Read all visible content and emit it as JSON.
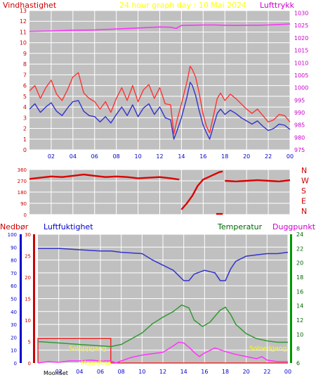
{
  "colors": {
    "background": "#ffffff",
    "plot_bg": "#c0c0c0",
    "grid": "#ffffff",
    "wind_red": "#ff3333",
    "wind_blue": "#3333cc",
    "pressure": "#ff33ff",
    "direction": "#dd0000",
    "humidity": "#3333cc",
    "temperature": "#339933",
    "dewpoint": "#ff33ff",
    "precip_axis": "#cc0000",
    "humidity_axis": "#0000cc",
    "temp_axis": "#006600",
    "label_yellow": "#ffff00",
    "box": "#ff0000"
  },
  "text": {
    "wind_label": "Vindhastighet",
    "title": "24 hour graph day : 10 Mai 2024",
    "pressure_label": "Lufttrykk",
    "precip_label": "Nedbør",
    "humidity_label": "Luftfuktighet",
    "temp_label": "Temperatur",
    "dewpoint_label": "Duggpunkt",
    "moonset": "MoonSet",
    "sunrise": "Soloppgang",
    "sunset": "Solnedgang",
    "moonrise": "MoonRise"
  },
  "chart_data": [
    {
      "type": "line",
      "x_ticks": [
        "02",
        "04",
        "06",
        "08",
        "10",
        "12",
        "14",
        "16",
        "18",
        "20",
        "22",
        "00"
      ],
      "x_hours": [
        0,
        24
      ],
      "series": [
        {
          "name": "Vindhastighet",
          "axis": "left",
          "ylim": [
            0,
            13
          ],
          "x": [
            0,
            0.5,
            1,
            1.5,
            2,
            2.5,
            3,
            3.5,
            4,
            4.5,
            5,
            5.5,
            6,
            6.5,
            7,
            7.5,
            8,
            8.5,
            9,
            9.5,
            10,
            10.5,
            11,
            11.5,
            12,
            12.5,
            13,
            13.3,
            13.6,
            14,
            14.5,
            14.8,
            15,
            15.3,
            15.6,
            16,
            16.3,
            16.6,
            17,
            17.3,
            17.6,
            18,
            18.5,
            19,
            19.5,
            20,
            20.5,
            21,
            21.5,
            22,
            22.5,
            23,
            23.5,
            24
          ],
          "y": [
            5.5,
            6,
            4.8,
            5.8,
            6.5,
            5.2,
            4.6,
            5.6,
            6.8,
            7.2,
            5.3,
            4.8,
            4.5,
            3.8,
            4.5,
            3.5,
            4.8,
            5.8,
            4.6,
            6,
            4.5,
            5.6,
            6.1,
            4.8,
            5.8,
            4.3,
            4.2,
            1.5,
            2.8,
            4.3,
            6.3,
            7.8,
            7.5,
            6.8,
            5.5,
            3.3,
            2.2,
            1.6,
            3.4,
            4.8,
            5.3,
            4.6,
            5.2,
            4.8,
            4.3,
            3.8,
            3.4,
            3.8,
            3.2,
            2.6,
            2.8,
            3.3,
            3.2,
            2.6
          ]
        },
        {
          "name": "",
          "axis": "left",
          "ylim": [
            0,
            13
          ],
          "x": [
            0,
            0.5,
            1,
            1.5,
            2,
            2.5,
            3,
            3.5,
            4,
            4.5,
            5,
            5.5,
            6,
            6.5,
            7,
            7.5,
            8,
            8.5,
            9,
            9.5,
            10,
            10.5,
            11,
            11.5,
            12,
            12.5,
            13,
            13.3,
            13.6,
            14,
            14.5,
            14.8,
            15,
            15.3,
            15.6,
            16,
            16.3,
            16.6,
            17,
            17.3,
            17.6,
            18,
            18.5,
            19,
            19.5,
            20,
            20.5,
            21,
            21.5,
            22,
            22.5,
            23,
            23.5,
            24
          ],
          "y": [
            3.8,
            4.3,
            3.5,
            4,
            4.4,
            3.6,
            3.2,
            3.9,
            4.5,
            4.6,
            3.6,
            3.2,
            3.1,
            2.6,
            3.1,
            2.5,
            3.3,
            4,
            3.2,
            4.2,
            3.1,
            3.9,
            4.3,
            3.3,
            4,
            3,
            2.8,
            1,
            1.8,
            3,
            4.9,
            6.3,
            6,
            5.1,
            3.8,
            2.3,
            1.6,
            1,
            2.4,
            3.4,
            3.8,
            3.3,
            3.7,
            3.4,
            3,
            2.7,
            2.4,
            2.7,
            2.2,
            1.8,
            2,
            2.4,
            2.3,
            1.9
          ]
        },
        {
          "name": "Lufttrykk",
          "axis": "right",
          "ylim": [
            975,
            1031
          ],
          "x": [
            0,
            2,
            4,
            6,
            8,
            10,
            12,
            13,
            13.5,
            14,
            15,
            16,
            17,
            18,
            19,
            20,
            21,
            22,
            23,
            24
          ],
          "y": [
            1022.6,
            1022.8,
            1023.1,
            1023.2,
            1023.6,
            1024,
            1024.4,
            1024.3,
            1023.8,
            1025,
            1025.1,
            1025.2,
            1025.2,
            1025.1,
            1025,
            1025.1,
            1025.1,
            1025.2,
            1025.4,
            1025.6
          ]
        }
      ],
      "left_ticks": [
        0,
        1,
        2,
        3,
        4,
        5,
        6,
        7,
        8,
        9,
        10,
        11,
        12,
        13
      ],
      "right_ticks": [
        975,
        980,
        985,
        990,
        995,
        1000,
        1005,
        1010,
        1015,
        1020,
        1025,
        1030
      ]
    },
    {
      "type": "scatter",
      "x_hours": [
        0,
        24
      ],
      "ylim": [
        0,
        360
      ],
      "left_ticks": [
        0,
        90,
        180,
        270,
        360
      ],
      "compass": [
        "N",
        "W",
        "S",
        "E",
        "N"
      ],
      "series": [
        {
          "name": "",
          "segments": [
            {
              "x": [
                0,
                1,
                2,
                3,
                4,
                5,
                6,
                7,
                8,
                9,
                10,
                11,
                12,
                13,
                13.8
              ],
              "y": [
                285,
                295,
                305,
                300,
                310,
                320,
                310,
                300,
                305,
                300,
                290,
                295,
                300,
                290,
                280
              ]
            },
            {
              "x": [
                14,
                14.5,
                15,
                15.5,
                16,
                16.5,
                17,
                17.5,
                17.8
              ],
              "y": [
                40,
                90,
                150,
                230,
                280,
                300,
                320,
                340,
                345
              ]
            },
            {
              "x": [
                18,
                19,
                20,
                21,
                22,
                23,
                24
              ],
              "y": [
                270,
                265,
                270,
                275,
                270,
                265,
                275
              ]
            },
            {
              "x": [
                17.2,
                17.8
              ],
              "y": [
                5,
                5
              ]
            }
          ]
        }
      ]
    },
    {
      "type": "line",
      "x_ticks": [
        "02",
        "04",
        "06",
        "08",
        "10",
        "12",
        "14",
        "16",
        "18",
        "20",
        "22",
        "00"
      ],
      "x_hours": [
        0,
        24
      ],
      "humidity_ticks": [
        0,
        10,
        20,
        30,
        40,
        50,
        60,
        70,
        80,
        90,
        100
      ],
      "precip_ticks": [
        0,
        5,
        10,
        15,
        20,
        25,
        30
      ],
      "temp_ticks": [
        6,
        8,
        10,
        12,
        14,
        16,
        18,
        20,
        22,
        24
      ],
      "series": [
        {
          "name": "Luftfuktighet",
          "axis": "humidity",
          "ylim": [
            0,
            100
          ],
          "x": [
            0,
            2,
            4,
            6,
            7,
            8,
            10,
            11,
            12,
            13,
            14,
            14.5,
            15,
            16,
            17,
            17.5,
            18,
            18.5,
            19,
            20,
            21,
            22,
            23,
            24
          ],
          "y": [
            89,
            89,
            88,
            87,
            87,
            86,
            85,
            80,
            76,
            72,
            64,
            64,
            69,
            72,
            70,
            64,
            64,
            73,
            79,
            83,
            84,
            85,
            85,
            86
          ]
        },
        {
          "name": "Temperatur",
          "axis": "temp",
          "ylim": [
            6,
            24
          ],
          "x": [
            0,
            2,
            4,
            6,
            7,
            8,
            10,
            11,
            12,
            13,
            13.8,
            14.5,
            15,
            15.8,
            16.5,
            17.5,
            18,
            18.5,
            19,
            20,
            21,
            22,
            23,
            24
          ],
          "y": [
            9,
            8.8,
            8.6,
            8.4,
            8.3,
            8.6,
            10.2,
            11.5,
            12.4,
            13.2,
            14.1,
            13.7,
            12,
            11.1,
            11.7,
            13.4,
            13.8,
            12.8,
            11.4,
            10.1,
            9.4,
            9.1,
            8.9,
            8.9
          ]
        },
        {
          "name": "Duggpunkt",
          "axis": "temp",
          "ylim": [
            6,
            24
          ],
          "x": [
            0,
            1,
            2,
            3,
            4,
            5,
            6,
            7,
            7.5,
            8,
            9,
            10,
            11,
            12,
            13,
            13.5,
            14,
            14.5,
            15,
            15.5,
            16,
            17,
            18,
            19,
            20,
            21,
            21.5,
            22,
            23,
            24
          ],
          "y": [
            6,
            6.2,
            6.1,
            6.3,
            6.3,
            6.4,
            6.3,
            6.3,
            6,
            6.3,
            6.8,
            7.1,
            7.3,
            7.5,
            8.4,
            8.9,
            8.8,
            8.2,
            7.5,
            6.9,
            7.4,
            8.1,
            7.6,
            7.2,
            6.9,
            6.6,
            6.9,
            6.4,
            6.2,
            6.2
          ]
        }
      ]
    }
  ]
}
